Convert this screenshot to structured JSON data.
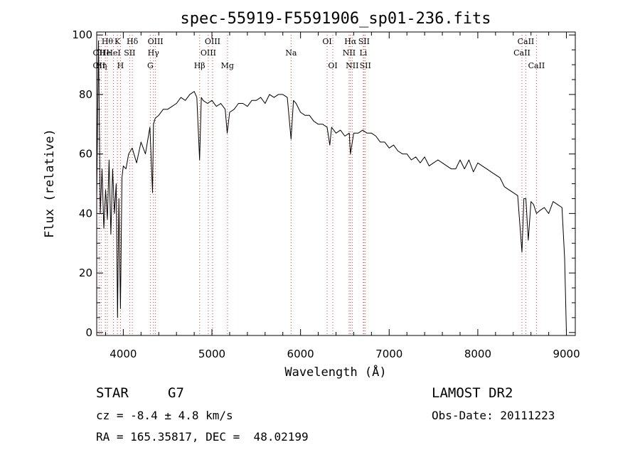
{
  "chart_data": {
    "type": "line",
    "title": "spec-55919-F5591906_sp01-236.fits",
    "xlabel": "Wavelength (Å)",
    "ylabel": "Flux (relative)",
    "xlim": [
      3700,
      9100
    ],
    "ylim": [
      -1,
      101
    ],
    "xticks": [
      4000,
      5000,
      6000,
      7000,
      8000,
      9000
    ],
    "yticks": [
      0,
      20,
      40,
      60,
      80,
      100
    ],
    "grid": false,
    "series": [
      {
        "x": [
          3700,
          3720,
          3740,
          3760,
          3780,
          3800,
          3820,
          3840,
          3860,
          3880,
          3900,
          3920,
          3935,
          3950,
          3968,
          3985,
          4000,
          4030,
          4060,
          4100,
          4150,
          4200,
          4250,
          4300,
          4330,
          4340,
          4360,
          4400,
          4450,
          4500,
          4550,
          4600,
          4650,
          4700,
          4750,
          4800,
          4830,
          4861,
          4880,
          4900,
          4950,
          5000,
          5050,
          5100,
          5150,
          5172,
          5200,
          5250,
          5300,
          5350,
          5400,
          5450,
          5500,
          5550,
          5600,
          5650,
          5700,
          5750,
          5800,
          5850,
          5893,
          5920,
          5950,
          6000,
          6050,
          6100,
          6150,
          6200,
          6250,
          6300,
          6330,
          6350,
          6400,
          6450,
          6500,
          6550,
          6563,
          6600,
          6650,
          6700,
          6750,
          6800,
          6850,
          6900,
          6950,
          7000,
          7050,
          7100,
          7150,
          7200,
          7250,
          7300,
          7350,
          7400,
          7450,
          7500,
          7550,
          7600,
          7650,
          7700,
          7750,
          7800,
          7850,
          7900,
          7950,
          8000,
          8050,
          8100,
          8150,
          8200,
          8250,
          8300,
          8350,
          8400,
          8450,
          8498,
          8520,
          8542,
          8570,
          8600,
          8630,
          8662,
          8700,
          8750,
          8800,
          8850,
          8900,
          8950,
          8980,
          9000
        ],
        "y": [
          45,
          98,
          40,
          55,
          35,
          48,
          38,
          58,
          33,
          55,
          40,
          50,
          5,
          45,
          8,
          52,
          56,
          55,
          60,
          62,
          57,
          64,
          60,
          69,
          47,
          70,
          72,
          73,
          75,
          75,
          76,
          77,
          79,
          78,
          80,
          81,
          79,
          58,
          79,
          78,
          77,
          78,
          76,
          77,
          75,
          67,
          74,
          75,
          77,
          77,
          76,
          78,
          78,
          79,
          77,
          80,
          79,
          80,
          80,
          79,
          65,
          78,
          77,
          74,
          73,
          73,
          71,
          70,
          70,
          69,
          63,
          69,
          67,
          68,
          66,
          67,
          60,
          67,
          67,
          68,
          67,
          67,
          66,
          64,
          64,
          62,
          63,
          61,
          60,
          60,
          58,
          59,
          57,
          59,
          56,
          57,
          58,
          57,
          56,
          55,
          55,
          58,
          55,
          58,
          54,
          57,
          56,
          55,
          54,
          53,
          52,
          49,
          48,
          47,
          46,
          27,
          45,
          45,
          31,
          44,
          43,
          40,
          41,
          42,
          40,
          44,
          43,
          42,
          25,
          0
        ]
      }
    ],
    "line_labels": [
      {
        "x": 3727,
        "row": 1,
        "text": "OII"
      },
      {
        "x": 3727,
        "row": 2,
        "text": "OII"
      },
      {
        "x": 3750,
        "row": 2,
        "text": "Hη"
      },
      {
        "x": 3797,
        "row": 1,
        "text": "He"
      },
      {
        "x": 3820,
        "row": 0,
        "text": "Hθ"
      },
      {
        "x": 3889,
        "row": 1,
        "text": "HeI"
      },
      {
        "x": 3934,
        "row": 0,
        "text": "K"
      },
      {
        "x": 3968,
        "row": 2,
        "text": "H"
      },
      {
        "x": 4072,
        "row": 1,
        "text": "SII"
      },
      {
        "x": 4102,
        "row": 0,
        "text": "Hδ"
      },
      {
        "x": 4340,
        "row": 1,
        "text": "Hγ"
      },
      {
        "x": 4305,
        "row": 2,
        "text": "G"
      },
      {
        "x": 4363,
        "row": 0,
        "text": "OIII"
      },
      {
        "x": 4861,
        "row": 2,
        "text": "Hβ"
      },
      {
        "x": 4959,
        "row": 1,
        "text": "OIII"
      },
      {
        "x": 5007,
        "row": 0,
        "text": "OIII"
      },
      {
        "x": 5175,
        "row": 2,
        "text": "Mg"
      },
      {
        "x": 5893,
        "row": 1,
        "text": "Na"
      },
      {
        "x": 6300,
        "row": 0,
        "text": "OI"
      },
      {
        "x": 6364,
        "row": 2,
        "text": "OI"
      },
      {
        "x": 6548,
        "row": 1,
        "text": "NII"
      },
      {
        "x": 6563,
        "row": 0,
        "text": "Hα"
      },
      {
        "x": 6583,
        "row": 2,
        "text": "NII"
      },
      {
        "x": 6708,
        "row": 1,
        "text": "Li"
      },
      {
        "x": 6716,
        "row": 0,
        "text": "SII"
      },
      {
        "x": 6731,
        "row": 2,
        "text": "SII"
      },
      {
        "x": 8498,
        "row": 1,
        "text": "CaII"
      },
      {
        "x": 8542,
        "row": 0,
        "text": "CaII"
      },
      {
        "x": 8662,
        "row": 2,
        "text": "CaII"
      }
    ],
    "line_markers": [
      3727,
      3750,
      3797,
      3820,
      3889,
      3934,
      3968,
      4072,
      4102,
      4305,
      4340,
      4363,
      4861,
      4959,
      5007,
      5175,
      5893,
      6300,
      6364,
      6548,
      6563,
      6583,
      6708,
      6716,
      6731,
      8498,
      8542,
      8662
    ],
    "line_marker_color": "#d04040"
  },
  "info": {
    "object_class": "STAR",
    "subclass": "G7",
    "survey": "LAMOST DR2",
    "redshift": "cz = -8.4 ± 4.8 km/s",
    "obs_date": "Obs-Date: 20111223",
    "coords": "RA = 165.35817, DEC =  48.02199"
  }
}
